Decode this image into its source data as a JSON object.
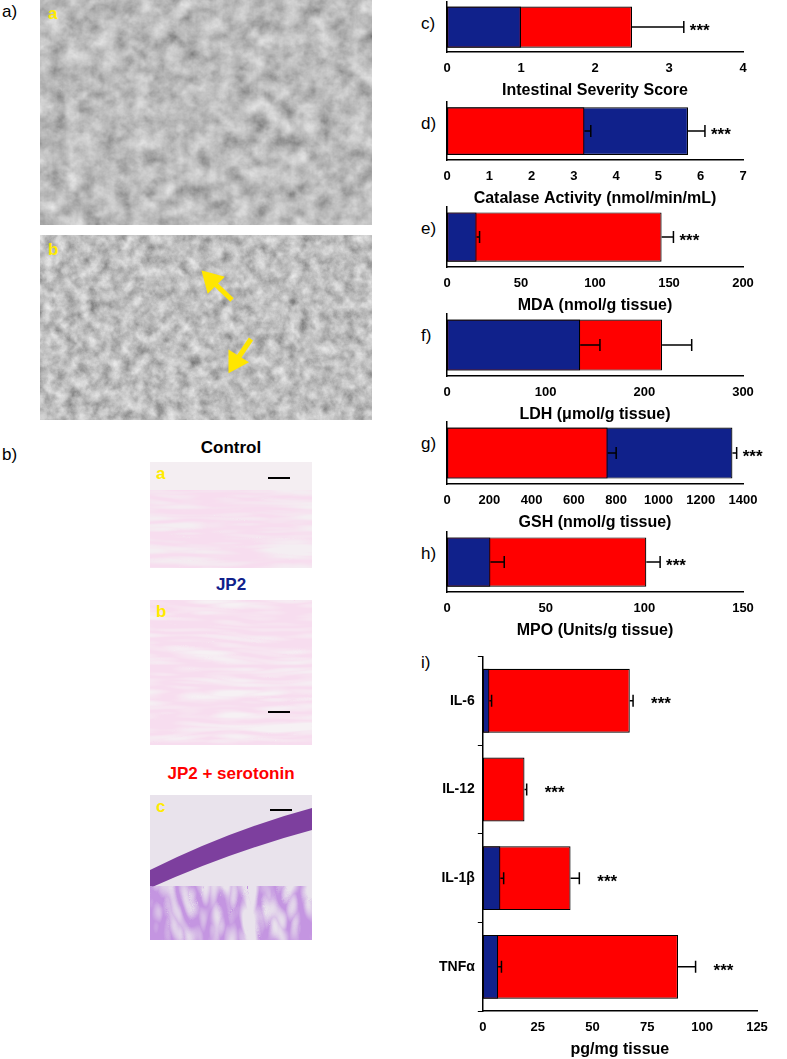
{
  "image_panels": [
    {
      "label": "a)",
      "images": [
        {
          "letter": "a"
        },
        {
          "letter": "b"
        }
      ]
    },
    {
      "label": "b)",
      "images": [
        {
          "letter": "a",
          "title": "Control"
        },
        {
          "letter": "b",
          "title": "JP2"
        },
        {
          "letter": "c",
          "title": "JP2 + serotonin"
        }
      ]
    }
  ],
  "chart_data": [
    {
      "label": "c)",
      "type": "bar",
      "orientation": "horizontal",
      "x_label": "Intestinal Severity Score",
      "categories": [
        null
      ],
      "xlim": [
        0,
        4
      ],
      "xticks": [
        0,
        1,
        2,
        3,
        4
      ],
      "tick_labels": "x",
      "series": [
        {
          "name": "JP2",
          "color": "#10218b",
          "values": [
            1
          ],
          "errors": [
            null
          ]
        },
        {
          "name": "JP2 + serotonin",
          "color": "#ff0000",
          "values": [
            2.5
          ],
          "errors": [
            0.7
          ]
        }
      ],
      "annotations": [
        "***"
      ]
    },
    {
      "label": "d)",
      "type": "bar",
      "orientation": "horizontal",
      "x_label": "Catalase Activity (nmol/min/mL)",
      "categories": [
        null
      ],
      "xlim": [
        0,
        7
      ],
      "xticks": [
        0,
        1,
        2,
        3,
        4,
        5,
        6,
        7
      ],
      "tick_labels": "x",
      "series": [
        {
          "name": "JP2",
          "color": "#10218b",
          "values": [
            5.7
          ],
          "errors": [
            0.4
          ]
        },
        {
          "name": "JP2 + serotonin",
          "color": "#ff0000",
          "values": [
            3.25
          ],
          "errors": [
            0.15
          ]
        }
      ],
      "annotations": [
        "***"
      ]
    },
    {
      "label": "e)",
      "type": "bar",
      "orientation": "horizontal",
      "x_label": "MDA (nmol/g tissue)",
      "categories": [
        null
      ],
      "xlim": [
        0,
        200
      ],
      "xticks": [
        0,
        50,
        100,
        150,
        200
      ],
      "tick_labels": "x",
      "series": [
        {
          "name": "JP2",
          "color": "#10218b",
          "values": [
            20
          ],
          "errors": [
            2
          ]
        },
        {
          "name": "JP2 + serotonin",
          "color": "#ff0000",
          "values": [
            145
          ],
          "errors": [
            8
          ]
        }
      ],
      "annotations": [
        "***"
      ]
    },
    {
      "label": "f)",
      "type": "bar",
      "orientation": "horizontal",
      "x_label": "LDH (μmol/g tissue)",
      "categories": [
        null
      ],
      "xlim": [
        0,
        300
      ],
      "xticks": [
        0,
        100,
        200,
        300
      ],
      "tick_labels": "x",
      "series": [
        {
          "name": "JP2",
          "color": "#10218b",
          "values": [
            135
          ],
          "errors": [
            20
          ]
        },
        {
          "name": "JP2 + serotonin",
          "color": "#ff0000",
          "values": [
            218
          ],
          "errors": [
            30
          ]
        }
      ]
    },
    {
      "label": "g)",
      "type": "bar",
      "orientation": "horizontal",
      "x_label": "GSH (nmol/g tissue)",
      "categories": [
        null
      ],
      "xlim": [
        0,
        1400
      ],
      "xticks": [
        0,
        200,
        400,
        600,
        800,
        1000,
        1200,
        1400
      ],
      "tick_labels": "x",
      "series": [
        {
          "name": "JP2",
          "color": "#10218b",
          "values": [
            1350
          ],
          "errors": [
            20
          ]
        },
        {
          "name": "JP2 + serotonin",
          "color": "#ff0000",
          "values": [
            760
          ],
          "errors": [
            40
          ]
        }
      ],
      "annotations": [
        "***"
      ]
    },
    {
      "label": "h)",
      "type": "bar",
      "orientation": "horizontal",
      "x_label": "MPO (Units/g tissue)",
      "categories": [
        null
      ],
      "xlim": [
        0,
        150
      ],
      "xticks": [
        0,
        50,
        100,
        150
      ],
      "tick_labels": "x",
      "series": [
        {
          "name": "JP2",
          "color": "#10218b",
          "values": [
            22
          ],
          "errors": [
            7
          ]
        },
        {
          "name": "JP2 + serotonin",
          "color": "#ff0000",
          "values": [
            101
          ],
          "errors": [
            7
          ]
        }
      ],
      "annotations": [
        "***"
      ]
    },
    {
      "label": "i)",
      "type": "bar",
      "orientation": "horizontal",
      "x_label": "pg/mg tissue",
      "categories": [
        "IL-6",
        "IL-12",
        "IL-1β",
        "TNFα"
      ],
      "xlim": [
        0,
        125
      ],
      "xticks": [
        0,
        25,
        50,
        75,
        100,
        125
      ],
      "series": [
        {
          "name": "JP2",
          "color": "#10218b",
          "values": [
            3,
            0,
            8,
            7
          ],
          "errors": [
            1,
            null,
            1.5,
            1.5
          ]
        },
        {
          "name": "JP2 + serotonin",
          "color": "#ff0000",
          "values": [
            67,
            19,
            40,
            89
          ],
          "errors": [
            1.5,
            1,
            4,
            8
          ]
        }
      ],
      "annotations": [
        "***",
        "***",
        "***",
        "***"
      ]
    }
  ]
}
